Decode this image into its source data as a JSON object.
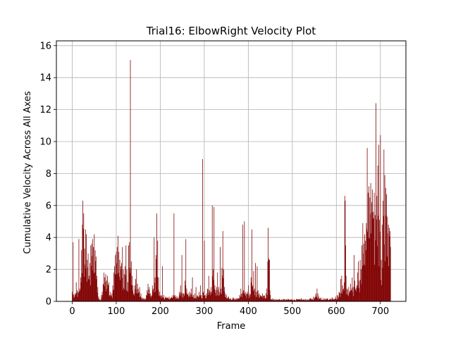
{
  "chart_data": {
    "type": "bar",
    "title": "Trial16: ElbowRight Velocity Plot",
    "xlabel": "Frame",
    "ylabel": "Cumulative Velocity Across All Axes",
    "xlim": [
      -36,
      758
    ],
    "ylim": [
      0,
      16.3
    ],
    "xticks": [
      0,
      100,
      200,
      300,
      400,
      500,
      600,
      700
    ],
    "yticks": [
      0,
      2,
      4,
      6,
      8,
      10,
      12,
      14,
      16
    ],
    "grid": true,
    "bar_color": "#800000",
    "frame_count": 724,
    "anchors": [
      [
        0,
        0.6
      ],
      [
        2,
        3.7
      ],
      [
        3,
        0.4
      ],
      [
        6,
        0.5
      ],
      [
        9,
        1.2
      ],
      [
        11,
        0.7
      ],
      [
        13,
        0.6
      ],
      [
        15,
        3.9
      ],
      [
        17,
        0.8
      ],
      [
        19,
        1.5
      ],
      [
        21,
        3.2
      ],
      [
        23,
        4.8
      ],
      [
        24,
        6.3
      ],
      [
        26,
        5.5
      ],
      [
        28,
        3.3
      ],
      [
        30,
        4.5
      ],
      [
        32,
        4.2
      ],
      [
        34,
        2.6
      ],
      [
        36,
        3.0
      ],
      [
        38,
        1.6
      ],
      [
        40,
        2.4
      ],
      [
        42,
        3.5
      ],
      [
        44,
        3.6
      ],
      [
        46,
        3.9
      ],
      [
        48,
        3.4
      ],
      [
        50,
        4.2
      ],
      [
        52,
        3.2
      ],
      [
        54,
        2.8
      ],
      [
        56,
        1.6
      ],
      [
        58,
        0.9
      ],
      [
        60,
        0.3
      ],
      [
        63,
        0.15
      ],
      [
        66,
        0.4
      ],
      [
        68,
        0.6
      ],
      [
        70,
        1.1
      ],
      [
        72,
        1.8
      ],
      [
        74,
        1.5
      ],
      [
        76,
        1.7
      ],
      [
        78,
        1.3
      ],
      [
        80,
        1.6
      ],
      [
        83,
        1.2
      ],
      [
        86,
        0.6
      ],
      [
        88,
        0.4
      ],
      [
        90,
        0.5
      ],
      [
        92,
        1.0
      ],
      [
        94,
        1.8
      ],
      [
        96,
        2.2
      ],
      [
        98,
        2.9
      ],
      [
        100,
        3.1
      ],
      [
        102,
        3.4
      ],
      [
        104,
        4.1
      ],
      [
        106,
        3.1
      ],
      [
        108,
        2.6
      ],
      [
        110,
        2.2
      ],
      [
        112,
        2.4
      ],
      [
        114,
        3.4
      ],
      [
        116,
        2.0
      ],
      [
        118,
        1.7
      ],
      [
        120,
        2.2
      ],
      [
        122,
        3.5
      ],
      [
        124,
        2.0
      ],
      [
        126,
        1.2
      ],
      [
        128,
        3.5
      ],
      [
        130,
        3.7
      ],
      [
        132,
        15.1
      ],
      [
        134,
        2.5
      ],
      [
        136,
        1.6
      ],
      [
        138,
        1.0
      ],
      [
        140,
        0.5
      ],
      [
        142,
        1.0
      ],
      [
        144,
        1.4
      ],
      [
        146,
        2.0
      ],
      [
        148,
        1.1
      ],
      [
        150,
        0.8
      ],
      [
        153,
        0.9
      ],
      [
        156,
        0.5
      ],
      [
        160,
        0.25
      ],
      [
        164,
        0.2
      ],
      [
        168,
        0.4
      ],
      [
        170,
        0.7
      ],
      [
        172,
        1.1
      ],
      [
        175,
        0.9
      ],
      [
        178,
        0.5
      ],
      [
        182,
        1.0
      ],
      [
        184,
        0.8
      ],
      [
        186,
        4.0
      ],
      [
        188,
        1.5
      ],
      [
        190,
        2.9
      ],
      [
        192,
        5.5
      ],
      [
        194,
        3.8
      ],
      [
        196,
        1.5
      ],
      [
        198,
        0.6
      ],
      [
        202,
        0.4
      ],
      [
        205,
        2.2
      ],
      [
        208,
        0.4
      ],
      [
        212,
        0.3
      ],
      [
        216,
        0.25
      ],
      [
        220,
        0.3
      ],
      [
        226,
        0.3
      ],
      [
        229,
        0.4
      ],
      [
        231,
        5.5
      ],
      [
        233,
        0.4
      ],
      [
        236,
        0.35
      ],
      [
        240,
        0.3
      ],
      [
        243,
        0.6
      ],
      [
        246,
        1.0
      ],
      [
        249,
        2.9
      ],
      [
        251,
        0.5
      ],
      [
        253,
        0.5
      ],
      [
        256,
        1.3
      ],
      [
        258,
        3.9
      ],
      [
        260,
        0.8
      ],
      [
        263,
        0.5
      ],
      [
        266,
        0.6
      ],
      [
        270,
        0.8
      ],
      [
        273,
        1.5
      ],
      [
        275,
        0.4
      ],
      [
        278,
        0.5
      ],
      [
        281,
        0.9
      ],
      [
        284,
        0.4
      ],
      [
        288,
        0.6
      ],
      [
        291,
        1.0
      ],
      [
        293,
        0.4
      ],
      [
        296,
        8.9
      ],
      [
        298,
        0.6
      ],
      [
        300,
        3.8
      ],
      [
        302,
        0.4
      ],
      [
        305,
        0.5
      ],
      [
        307,
        0.8
      ],
      [
        310,
        1.6
      ],
      [
        312,
        0.7
      ],
      [
        315,
        0.9
      ],
      [
        318,
        6.0
      ],
      [
        320,
        2.0
      ],
      [
        322,
        5.9
      ],
      [
        324,
        1.0
      ],
      [
        326,
        0.7
      ],
      [
        328,
        0.9
      ],
      [
        330,
        1.8
      ],
      [
        333,
        0.9
      ],
      [
        336,
        3.4
      ],
      [
        338,
        0.8
      ],
      [
        340,
        2.1
      ],
      [
        342,
        4.4
      ],
      [
        344,
        2.0
      ],
      [
        346,
        0.9
      ],
      [
        348,
        0.5
      ],
      [
        350,
        0.4
      ],
      [
        355,
        0.3
      ],
      [
        360,
        0.2
      ],
      [
        365,
        0.25
      ],
      [
        370,
        0.2
      ],
      [
        375,
        0.2
      ],
      [
        380,
        0.4
      ],
      [
        383,
        0.8
      ],
      [
        385,
        0.5
      ],
      [
        387,
        4.8
      ],
      [
        389,
        0.7
      ],
      [
        391,
        5.0
      ],
      [
        393,
        0.6
      ],
      [
        395,
        0.5
      ],
      [
        398,
        0.6
      ],
      [
        400,
        1.0
      ],
      [
        403,
        0.5
      ],
      [
        406,
        1.5
      ],
      [
        408,
        4.5
      ],
      [
        410,
        1.0
      ],
      [
        412,
        1.9
      ],
      [
        414,
        0.8
      ],
      [
        416,
        2.4
      ],
      [
        418,
        0.6
      ],
      [
        420,
        2.2
      ],
      [
        422,
        0.7
      ],
      [
        425,
        0.5
      ],
      [
        428,
        0.4
      ],
      [
        432,
        0.5
      ],
      [
        436,
        0.4
      ],
      [
        440,
        0.5
      ],
      [
        442,
        0.8
      ],
      [
        444,
        2.5
      ],
      [
        445,
        4.6
      ],
      [
        446,
        2.7
      ],
      [
        447,
        2.6
      ],
      [
        448,
        2.6
      ],
      [
        449,
        0.7
      ],
      [
        450,
        0.4
      ],
      [
        455,
        0.2
      ],
      [
        460,
        0.15
      ],
      [
        470,
        0.15
      ],
      [
        480,
        0.15
      ],
      [
        490,
        0.15
      ],
      [
        500,
        0.15
      ],
      [
        510,
        0.15
      ],
      [
        520,
        0.2
      ],
      [
        530,
        0.15
      ],
      [
        540,
        0.2
      ],
      [
        548,
        0.3
      ],
      [
        553,
        0.5
      ],
      [
        556,
        0.8
      ],
      [
        558,
        0.5
      ],
      [
        560,
        0.3
      ],
      [
        565,
        0.25
      ],
      [
        570,
        0.2
      ],
      [
        580,
        0.2
      ],
      [
        590,
        0.25
      ],
      [
        598,
        0.3
      ],
      [
        602,
        0.4
      ],
      [
        606,
        0.6
      ],
      [
        610,
        1.4
      ],
      [
        612,
        1.6
      ],
      [
        614,
        1.0
      ],
      [
        616,
        0.8
      ],
      [
        618,
        1.2
      ],
      [
        619,
        6.6
      ],
      [
        620,
        6.3
      ],
      [
        621,
        3.5
      ],
      [
        622,
        1.6
      ],
      [
        624,
        0.8
      ],
      [
        628,
        0.9
      ],
      [
        632,
        1.1
      ],
      [
        636,
        1.5
      ],
      [
        638,
        0.9
      ],
      [
        640,
        2.9
      ],
      [
        642,
        1.3
      ],
      [
        644,
        0.8
      ],
      [
        646,
        1.0
      ],
      [
        648,
        1.8
      ],
      [
        650,
        2.5
      ],
      [
        652,
        1.3
      ],
      [
        654,
        2.6
      ],
      [
        656,
        2.0
      ],
      [
        658,
        3.5
      ],
      [
        660,
        4.9
      ],
      [
        662,
        3.6
      ],
      [
        664,
        4.2
      ],
      [
        666,
        3.8
      ],
      [
        668,
        4.9
      ],
      [
        670,
        9.6
      ],
      [
        672,
        6.8
      ],
      [
        674,
        7.2
      ],
      [
        676,
        6.5
      ],
      [
        678,
        7.4
      ],
      [
        680,
        6.2
      ],
      [
        682,
        7.0
      ],
      [
        684,
        5.6
      ],
      [
        686,
        6.8
      ],
      [
        688,
        5.4
      ],
      [
        690,
        12.4
      ],
      [
        692,
        6.6
      ],
      [
        694,
        8.5
      ],
      [
        696,
        9.8
      ],
      [
        698,
        5.1
      ],
      [
        700,
        10.4
      ],
      [
        702,
        2.6
      ],
      [
        704,
        4.8
      ],
      [
        706,
        6.3
      ],
      [
        708,
        9.5
      ],
      [
        710,
        7.9
      ],
      [
        712,
        7.1
      ],
      [
        714,
        6.7
      ],
      [
        716,
        5.3
      ],
      [
        718,
        4.8
      ],
      [
        720,
        4.6
      ],
      [
        722,
        4.4
      ],
      [
        723,
        3.4
      ]
    ]
  }
}
